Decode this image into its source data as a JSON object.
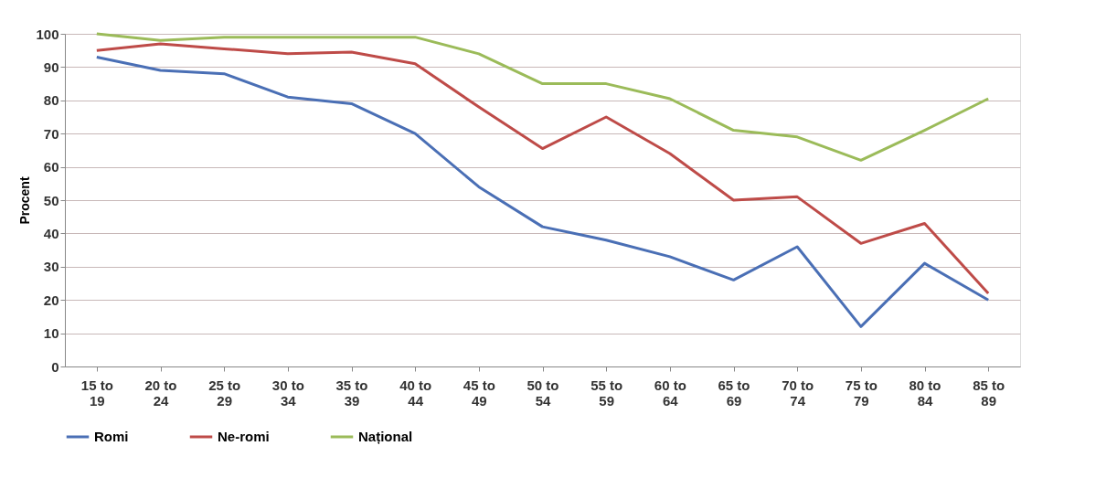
{
  "chart_data": {
    "type": "line",
    "ylabel": "Procent",
    "categories": [
      "15 to 19",
      "20 to 24",
      "25 to 29",
      "30 to 34",
      "35 to 39",
      "40 to 44",
      "45 to 49",
      "50 to 54",
      "55 to 59",
      "60 to 64",
      "65 to 69",
      "70 to 74",
      "75 to 79",
      "80 to 84",
      "85 to 89"
    ],
    "series": [
      {
        "name": "Romi",
        "color": "#4a6fb5",
        "values": [
          93,
          89,
          88,
          81,
          79,
          70,
          54,
          42,
          38,
          33,
          26,
          36,
          12,
          31,
          20
        ]
      },
      {
        "name": "Ne-romi",
        "color": "#be4b48",
        "values": [
          95,
          97,
          95.5,
          94,
          94.5,
          91,
          78,
          65.5,
          75,
          64,
          50,
          51,
          37,
          43,
          22
        ]
      },
      {
        "name": "Național",
        "color": "#9bbb59",
        "values": [
          100,
          98,
          99,
          99,
          99,
          99,
          94,
          85,
          85,
          80.5,
          71,
          69,
          62,
          71,
          80.5
        ]
      }
    ],
    "ylim": [
      0,
      100
    ],
    "yticks": [
      0,
      10,
      20,
      30,
      40,
      50,
      60,
      70,
      80,
      90,
      100
    ],
    "grid": "y",
    "legend": "bottom",
    "marker": "none",
    "line_style": "solid"
  }
}
